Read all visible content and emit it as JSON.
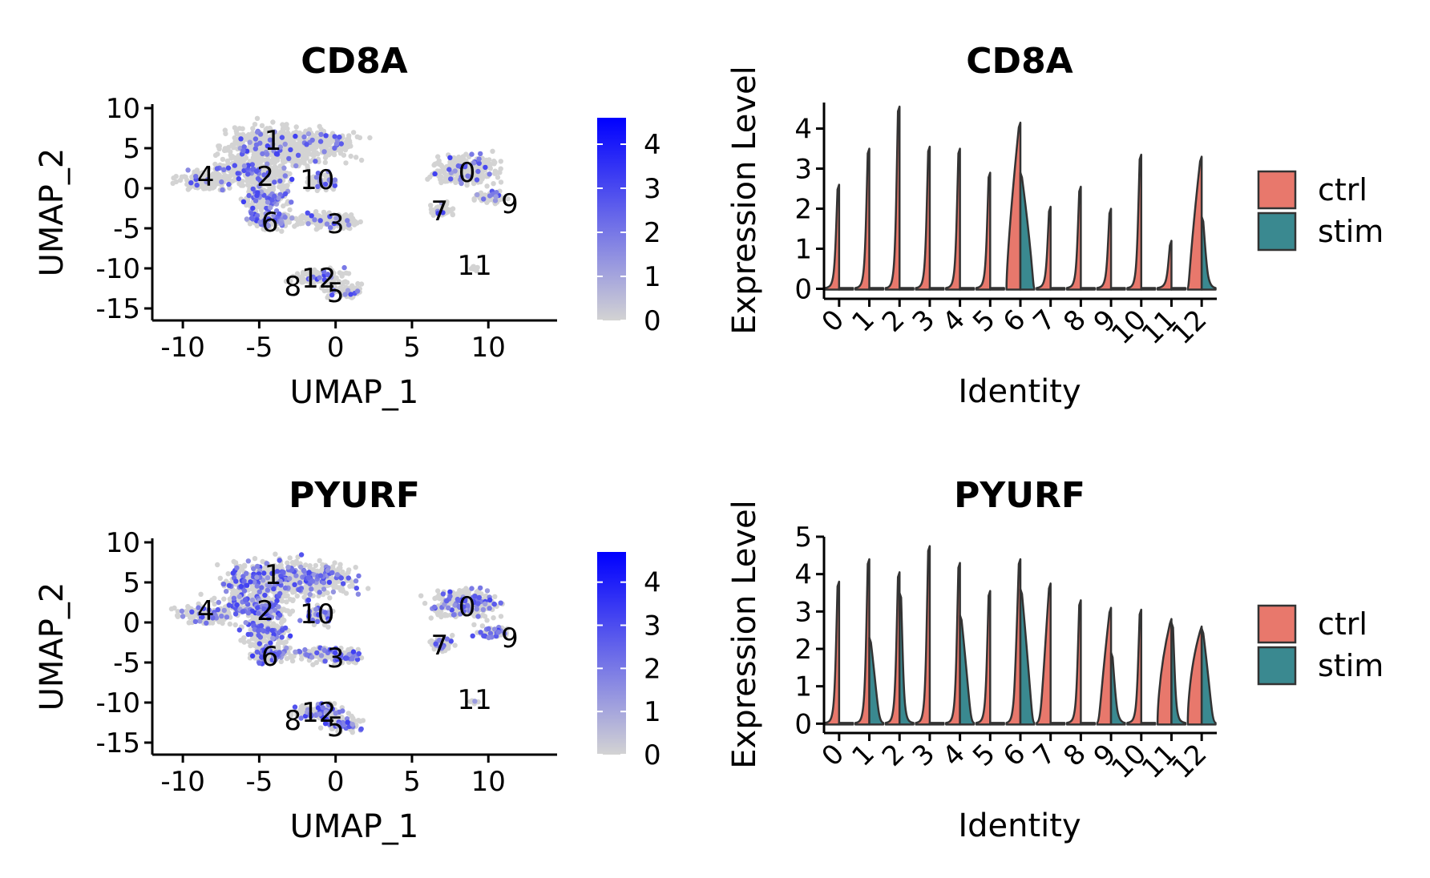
{
  "palette": {
    "low": "#d3d3d3",
    "high": "#0000ff",
    "ctrl": "#e8786c",
    "stim": "#3a8990",
    "violin_stroke": "#333333",
    "axis": "#000000"
  },
  "chart_data": [
    {
      "type": "scatter",
      "title": "CD8A",
      "xlabel": "UMAP_1",
      "ylabel": "UMAP_2",
      "xlim": [
        -12,
        14.5
      ],
      "ylim": [
        -16.5,
        10.5
      ],
      "xticks": [
        -10,
        -5,
        0,
        5,
        10
      ],
      "xtick_labels": [
        "-10",
        "-5",
        "0",
        "5",
        "10"
      ],
      "yticks": [
        10,
        5,
        0,
        -5,
        -10,
        -15
      ],
      "ytick_labels": [
        "10",
        "5",
        "0",
        "-5",
        "-10",
        "-15"
      ],
      "cluster_labels": [
        {
          "text": "0",
          "x": 8.6,
          "y": 2.0
        },
        {
          "text": "1",
          "x": -4.1,
          "y": 6.0
        },
        {
          "text": "2",
          "x": -4.6,
          "y": 1.5
        },
        {
          "text": "3",
          "x": 0.0,
          "y": -4.4
        },
        {
          "text": "4",
          "x": -8.5,
          "y": 1.5
        },
        {
          "text": "5",
          "x": 0.0,
          "y": -13.0
        },
        {
          "text": "6",
          "x": -4.3,
          "y": -4.2
        },
        {
          "text": "7",
          "x": 6.8,
          "y": -2.8
        },
        {
          "text": "8",
          "x": -2.8,
          "y": -12.2
        },
        {
          "text": "9",
          "x": 11.4,
          "y": -1.9
        },
        {
          "text": "10",
          "x": -1.2,
          "y": 1.1
        },
        {
          "text": "11",
          "x": 9.1,
          "y": -9.6
        },
        {
          "text": "12",
          "x": -1.1,
          "y": -11.2
        }
      ],
      "color_scale": {
        "min": 0,
        "max": 4.6,
        "ticks": [
          0,
          1,
          2,
          3,
          4
        ],
        "tick_labels": [
          "0",
          "1",
          "2",
          "3",
          "4"
        ]
      }
    },
    {
      "type": "violin",
      "title": "CD8A",
      "xlabel": "Identity",
      "ylabel": "Expression Level",
      "ylim": [
        -0.25,
        4.65
      ],
      "yticks": [
        0,
        1,
        2,
        3,
        4
      ],
      "ytick_labels": [
        "0",
        "1",
        "2",
        "3",
        "4"
      ],
      "categories": [
        "0",
        "1",
        "2",
        "3",
        "4",
        "5",
        "6",
        "7",
        "8",
        "9",
        "10",
        "11",
        "12"
      ],
      "series": [
        {
          "name": "ctrl",
          "max": [
            2.6,
            3.5,
            4.55,
            3.55,
            3.5,
            2.9,
            4.15,
            2.05,
            2.55,
            2.0,
            3.35,
            1.2,
            3.3
          ],
          "body": [
            0,
            0,
            0,
            0,
            0,
            0,
            0.9,
            0,
            0,
            0,
            0,
            0,
            0.6
          ]
        },
        {
          "name": "stim",
          "max": [
            0,
            0,
            0,
            0,
            0,
            0,
            2.9,
            0,
            0,
            0,
            0,
            0,
            1.8
          ],
          "body": [
            0,
            0,
            0,
            0,
            0,
            0,
            0.6,
            0,
            0,
            0,
            0,
            0,
            0.05
          ]
        }
      ],
      "legend": {
        "entries": [
          "ctrl",
          "stim"
        ],
        "position": "right"
      }
    },
    {
      "type": "scatter",
      "title": "PYURF",
      "xlabel": "UMAP_1",
      "ylabel": "UMAP_2",
      "xlim": [
        -12,
        14.5
      ],
      "ylim": [
        -16.5,
        10.5
      ],
      "xticks": [
        -10,
        -5,
        0,
        5,
        10
      ],
      "xtick_labels": [
        "-10",
        "-5",
        "0",
        "5",
        "10"
      ],
      "yticks": [
        10,
        5,
        0,
        -5,
        -10,
        -15
      ],
      "ytick_labels": [
        "10",
        "5",
        "0",
        "-5",
        "-10",
        "-15"
      ],
      "cluster_labels": [
        {
          "text": "0",
          "x": 8.6,
          "y": 2.0
        },
        {
          "text": "1",
          "x": -4.1,
          "y": 6.0
        },
        {
          "text": "2",
          "x": -4.6,
          "y": 1.5
        },
        {
          "text": "3",
          "x": 0.0,
          "y": -4.4
        },
        {
          "text": "4",
          "x": -8.5,
          "y": 1.5
        },
        {
          "text": "5",
          "x": 0.0,
          "y": -13.0
        },
        {
          "text": "6",
          "x": -4.3,
          "y": -4.2
        },
        {
          "text": "7",
          "x": 6.8,
          "y": -2.8
        },
        {
          "text": "8",
          "x": -2.8,
          "y": -12.2
        },
        {
          "text": "9",
          "x": 11.4,
          "y": -1.9
        },
        {
          "text": "10",
          "x": -1.2,
          "y": 1.1
        },
        {
          "text": "11",
          "x": 9.1,
          "y": -9.6
        },
        {
          "text": "12",
          "x": -1.1,
          "y": -11.2
        }
      ],
      "color_scale": {
        "min": 0,
        "max": 4.7,
        "ticks": [
          0,
          1,
          2,
          3,
          4
        ],
        "tick_labels": [
          "0",
          "1",
          "2",
          "3",
          "4"
        ]
      }
    },
    {
      "type": "violin",
      "title": "PYURF",
      "xlabel": "Identity",
      "ylabel": "Expression Level",
      "ylim": [
        -0.25,
        5.0
      ],
      "yticks": [
        0,
        1,
        2,
        3,
        4,
        5
      ],
      "ytick_labels": [
        "0",
        "1",
        "2",
        "3",
        "4",
        "5"
      ],
      "categories": [
        "0",
        "1",
        "2",
        "3",
        "4",
        "5",
        "6",
        "7",
        "8",
        "9",
        "10",
        "11",
        "12"
      ],
      "series": [
        {
          "name": "ctrl",
          "max": [
            3.8,
            4.4,
            4.05,
            4.75,
            4.3,
            3.55,
            4.4,
            3.75,
            3.3,
            3.1,
            3.05,
            2.8,
            2.6
          ],
          "body": [
            0,
            0,
            0,
            0,
            0,
            0,
            0.1,
            0.35,
            0,
            0.5,
            0,
            1.4,
            1.5
          ]
        },
        {
          "name": "stim",
          "max": [
            0,
            2.3,
            3.5,
            0,
            2.9,
            0,
            3.6,
            0,
            0,
            1.9,
            0,
            2.7,
            2.55
          ],
          "body": [
            0,
            0.3,
            0,
            0,
            0.4,
            0,
            0.5,
            0,
            0,
            0.05,
            0,
            0,
            0.4
          ]
        }
      ],
      "legend": {
        "entries": [
          "ctrl",
          "stim"
        ],
        "position": "right"
      }
    }
  ]
}
